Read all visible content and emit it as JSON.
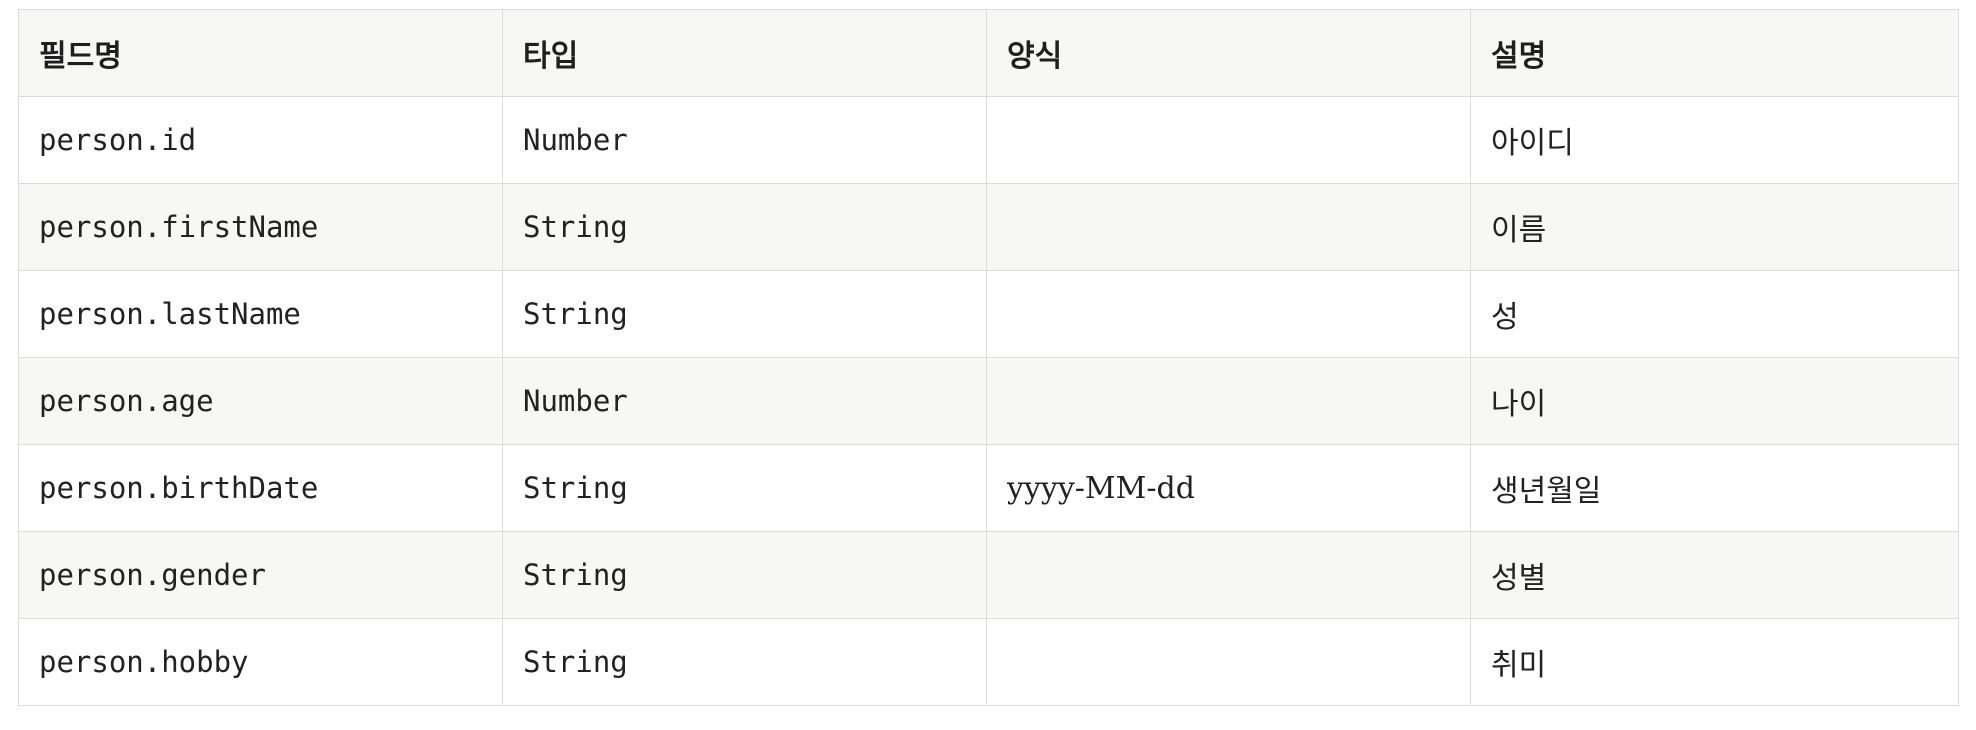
{
  "table": {
    "headers": [
      "필드명",
      "타입",
      "양식",
      "설명"
    ],
    "rows": [
      {
        "field": "person.id",
        "type": "Number",
        "format": "",
        "description": "아이디"
      },
      {
        "field": "person.firstName",
        "type": "String",
        "format": "",
        "description": "이름"
      },
      {
        "field": "person.lastName",
        "type": "String",
        "format": "",
        "description": "성"
      },
      {
        "field": "person.age",
        "type": "Number",
        "format": "",
        "description": "나이"
      },
      {
        "field": "person.birthDate",
        "type": "String",
        "format": "yyyy-MM-dd",
        "description": "생년월일"
      },
      {
        "field": "person.gender",
        "type": "String",
        "format": "",
        "description": "성별"
      },
      {
        "field": "person.hobby",
        "type": "String",
        "format": "",
        "description": "취미"
      }
    ]
  }
}
